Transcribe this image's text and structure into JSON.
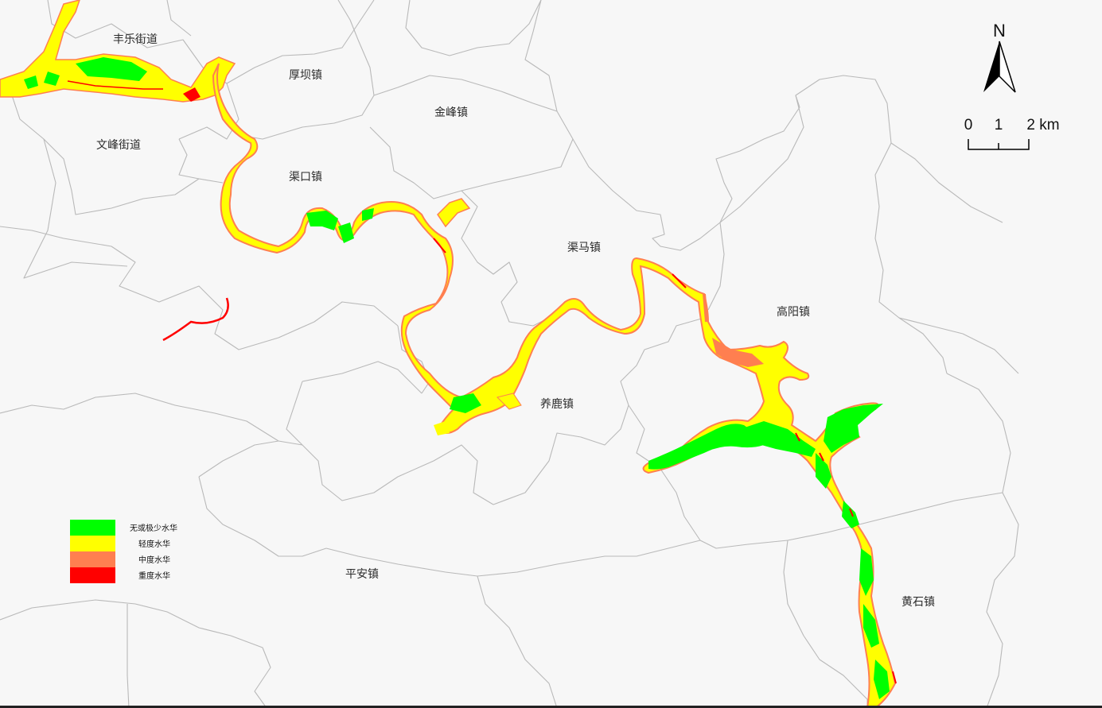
{
  "map": {
    "towns": [
      {
        "id": "fengle",
        "label": "丰乐街道"
      },
      {
        "id": "houba",
        "label": "厚坝镇"
      },
      {
        "id": "jinfeng",
        "label": "金峰镇"
      },
      {
        "id": "wenfeng",
        "label": "文峰街道"
      },
      {
        "id": "qukou",
        "label": "渠口镇"
      },
      {
        "id": "quma",
        "label": "渠马镇"
      },
      {
        "id": "gaoyang",
        "label": "高阳镇"
      },
      {
        "id": "yanglu",
        "label": "养鹿镇"
      },
      {
        "id": "pingan",
        "label": "平安镇"
      },
      {
        "id": "huangshi",
        "label": "黄石镇"
      }
    ],
    "north_arrow": {
      "label": "N",
      "icon": "north-arrow-icon"
    },
    "scale_bar": {
      "labels": [
        "0",
        "1",
        "2 km"
      ]
    },
    "legend": {
      "items": [
        {
          "label": "无或极少水华",
          "color": "#00ff00"
        },
        {
          "label": "轻度水华",
          "color": "#ffff00"
        },
        {
          "label": "中度水华",
          "color": "#ff7f50"
        },
        {
          "label": "重度水华",
          "color": "#ff0000"
        }
      ]
    },
    "colors": {
      "background": "#f7f7f7",
      "boundary": "#b9b9b9",
      "none_bloom": "#00ff00",
      "light_bloom": "#ffff00",
      "moderate_bloom": "#ff7f50",
      "heavy_bloom": "#ff0000"
    }
  }
}
